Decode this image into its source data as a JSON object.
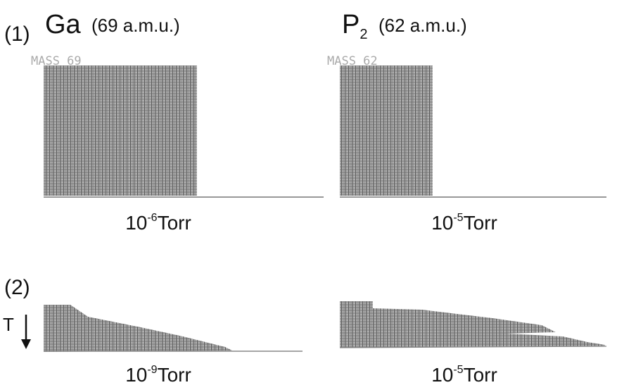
{
  "rows": [
    {
      "label": "(1)",
      "pressures": [
        {
          "base": "10",
          "exp": "-6",
          "unit": "Torr"
        },
        {
          "base": "10",
          "exp": "-5",
          "unit": "Torr"
        }
      ]
    },
    {
      "label": "(2)",
      "pressures": [
        {
          "base": "10",
          "exp": "-9",
          "unit": "Torr"
        },
        {
          "base": "10",
          "exp": "-5",
          "unit": "Torr"
        }
      ]
    }
  ],
  "columns": [
    {
      "element": "Ga",
      "mass": "(69 a.m.u.)",
      "screen": "MASS  69"
    },
    {
      "element": "P",
      "subscript": "2",
      "mass": "(62 a.m.u.)",
      "screen": "MASS  62"
    }
  ],
  "axis_label": "T"
}
